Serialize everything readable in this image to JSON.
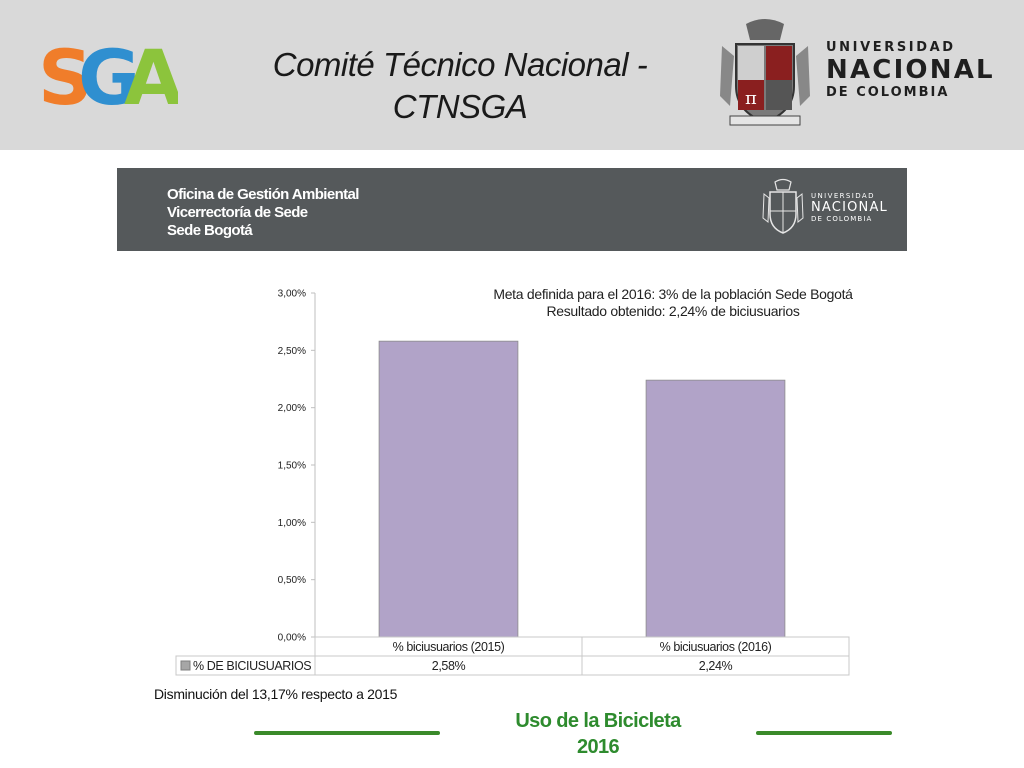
{
  "header": {
    "logo_text": "SGA",
    "title_line1": "Comité Técnico Nacional -",
    "title_line2": "CTNSGA",
    "university_line1": "UNIVERSIDAD",
    "university_line2": "NACIONAL",
    "university_line3": "DE COLOMBIA"
  },
  "office": {
    "line1": "Oficina de Gestión Ambiental",
    "line2": "Vicerrectoría de Sede",
    "line3": "Sede Bogotá",
    "university_line1": "UNIVERSIDAD",
    "university_line2": "NACIONAL",
    "university_line3": "DE COLOMBIA"
  },
  "chart_data": {
    "type": "bar",
    "categories": [
      "% biciusuarios (2015)",
      "% biciusuarios (2016)"
    ],
    "series": [
      {
        "name": "% DE BICIUSUARIOS",
        "values": [
          2.58,
          2.24
        ],
        "labels": [
          "2,58%",
          "2,24%"
        ],
        "color": "#b1a3c8"
      }
    ],
    "ylim": [
      0,
      3
    ],
    "yticks": [
      "0,00%",
      "0,50%",
      "1,00%",
      "1,50%",
      "2,00%",
      "2,50%",
      "3,00%"
    ],
    "annotations": [
      "Meta definida para el 2016: 3% de la población Sede Bogotá",
      "Resultado obtenido: 2,24% de biciusuarios"
    ],
    "data_table": true,
    "legend_position": "bottom-left (data table)"
  },
  "note": "Disminución del 13,17% respecto a 2015",
  "footer": {
    "title_line1": "Uso de la Bicicleta",
    "title_line2": "2016"
  },
  "colors": {
    "header_band": "#d9d9d9",
    "office_band": "#55595b",
    "bar": "#b1a3c8",
    "footer_green": "#2e8b2e",
    "sga_orange": "#f07d2a",
    "sga_blue": "#2f8fd0",
    "sga_green": "#8cc43c"
  }
}
